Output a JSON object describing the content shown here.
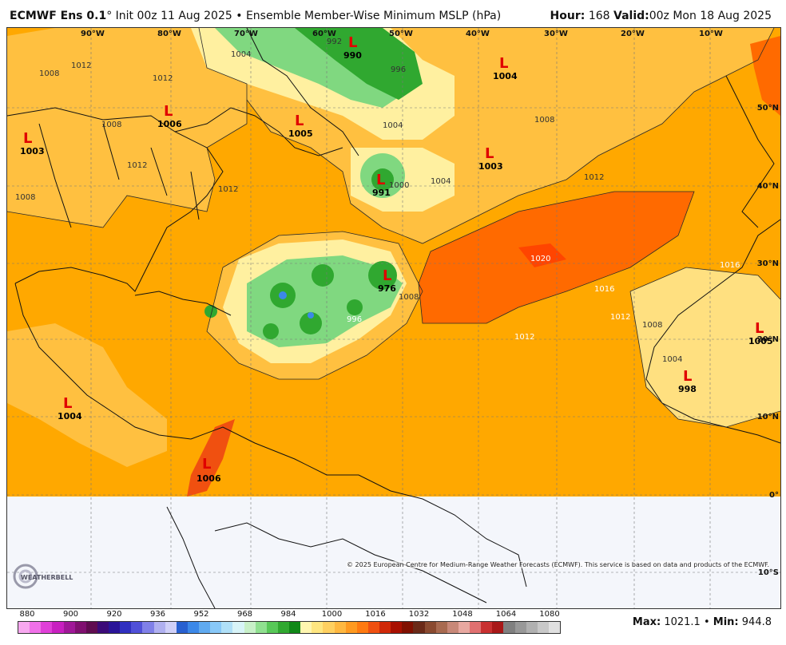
{
  "header": {
    "model": "ECMWF Ens 0.1",
    "degree": "°",
    "init": "Init 00z 11 Aug 2025",
    "sep": "•",
    "product": "Ensemble Member-Wise Minimum MSLP (hPa)",
    "hour_label": "Hour:",
    "hour": "168",
    "valid_label": "Valid:",
    "valid": "00z Mon 18 Aug 2025"
  },
  "longitudes": [
    "90°W",
    "80°W",
    "70°W",
    "60°W",
    "50°W",
    "40°W",
    "30°W",
    "20°W",
    "10°W"
  ],
  "latitudes": [
    "50°N",
    "40°N",
    "30°N",
    "20°N",
    "10°N",
    "0°",
    "10°S"
  ],
  "lows": [
    {
      "value": "1003"
    },
    {
      "value": "1006"
    },
    {
      "value": "1005"
    },
    {
      "value": "990"
    },
    {
      "value": "1004"
    },
    {
      "value": "1003"
    },
    {
      "value": "991"
    },
    {
      "value": "976"
    },
    {
      "value": "1004"
    },
    {
      "value": "1006"
    },
    {
      "value": "1005"
    },
    {
      "value": "998"
    }
  ],
  "contour_labels": [
    "1008",
    "1012",
    "1012",
    "1008",
    "1004",
    "1012",
    "1012",
    "1008",
    "1004",
    "1000",
    "992",
    "996",
    "1020",
    "1016",
    "1012",
    "1012",
    "1008",
    "1004",
    "996",
    "1008",
    "1008",
    "1012",
    "1016",
    "1004"
  ],
  "copyright": "© 2025 European Centre for Medium-Range Weather Forecasts (ECMWF). This service is based on data and products of the ECMWF.",
  "colorbar": {
    "ticks": [
      "880",
      "900",
      "920",
      "936",
      "952",
      "968",
      "984",
      "1000",
      "1016",
      "1032",
      "1048",
      "1064",
      "1080"
    ],
    "colors": [
      "#f8a8f0",
      "#f070e8",
      "#e040d8",
      "#c820c0",
      "#a01898",
      "#801070",
      "#600c50",
      "#3c0a78",
      "#2a1498",
      "#3030c0",
      "#5050d8",
      "#8080e8",
      "#b0b0f0",
      "#d0d0f8",
      "#2860d0",
      "#3c88e8",
      "#60aaf0",
      "#88c8f8",
      "#b0e0f8",
      "#d8f4f8",
      "#c8f0c8",
      "#90e090",
      "#58c858",
      "#30a830",
      "#108818",
      "#fff6b0",
      "#ffe680",
      "#ffd060",
      "#ffb840",
      "#ff9a20",
      "#ff7a10",
      "#f05010",
      "#d02808",
      "#a81000",
      "#801000",
      "#6a2a18",
      "#8a4a30",
      "#a86a50",
      "#c88878",
      "#e8a8a0",
      "#e07070",
      "#c83030",
      "#a81818",
      "#808080",
      "#989898",
      "#b0b0b0",
      "#c8c8c8",
      "#e0e0e0"
    ]
  },
  "stats": {
    "max_label": "Max:",
    "max": "1021.1",
    "sep": "•",
    "min_label": "Min:",
    "min": "944.8"
  },
  "logo": {
    "text": "WEATHERBELL"
  }
}
